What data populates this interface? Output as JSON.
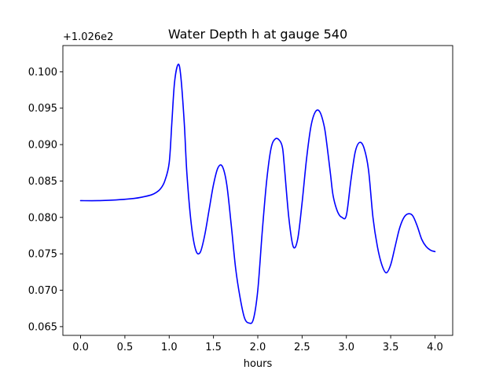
{
  "chart_data": {
    "type": "line",
    "title": "Water Depth h at gauge 540",
    "xlabel": "hours",
    "ylabel": "",
    "y_offset_label": "+1.026e2",
    "xlim": [
      -0.2,
      4.2
    ],
    "ylim": [
      0.0638,
      0.1036
    ],
    "x_ticks": [
      0.0,
      0.5,
      1.0,
      1.5,
      2.0,
      2.5,
      3.0,
      3.5,
      4.0
    ],
    "x_tick_labels": [
      "0.0",
      "0.5",
      "1.0",
      "1.5",
      "2.0",
      "2.5",
      "3.0",
      "3.5",
      "4.0"
    ],
    "y_ticks": [
      0.065,
      0.07,
      0.075,
      0.08,
      0.085,
      0.09,
      0.095,
      0.1
    ],
    "y_tick_labels": [
      "0.065",
      "0.070",
      "0.075",
      "0.080",
      "0.085",
      "0.090",
      "0.095",
      "0.100"
    ],
    "grid": false,
    "series": [
      {
        "color": "#0000ff",
        "x": [
          0.0,
          0.2,
          0.4,
          0.6,
          0.7,
          0.8,
          0.85,
          0.9,
          0.95,
          1.0,
          1.03,
          1.06,
          1.1,
          1.13,
          1.17,
          1.2,
          1.25,
          1.3,
          1.35,
          1.4,
          1.45,
          1.5,
          1.55,
          1.6,
          1.65,
          1.7,
          1.75,
          1.8,
          1.85,
          1.9,
          1.95,
          2.0,
          2.05,
          2.1,
          2.15,
          2.2,
          2.25,
          2.28,
          2.3,
          2.35,
          2.4,
          2.45,
          2.5,
          2.55,
          2.6,
          2.65,
          2.7,
          2.75,
          2.78,
          2.82,
          2.85,
          2.9,
          2.95,
          3.0,
          3.05,
          3.1,
          3.15,
          3.2,
          3.25,
          3.3,
          3.35,
          3.4,
          3.45,
          3.5,
          3.55,
          3.6,
          3.65,
          3.7,
          3.75,
          3.8,
          3.85,
          3.9,
          3.95,
          4.0
        ],
        "y": [
          0.0823,
          0.0823,
          0.0824,
          0.0826,
          0.0828,
          0.0831,
          0.0834,
          0.0839,
          0.085,
          0.0875,
          0.093,
          0.0985,
          0.101,
          0.0995,
          0.093,
          0.086,
          0.079,
          0.0755,
          0.0752,
          0.0775,
          0.081,
          0.0845,
          0.0868,
          0.087,
          0.0845,
          0.079,
          0.073,
          0.069,
          0.0662,
          0.0655,
          0.066,
          0.07,
          0.078,
          0.085,
          0.0895,
          0.0908,
          0.0905,
          0.0895,
          0.087,
          0.08,
          0.076,
          0.077,
          0.082,
          0.088,
          0.0925,
          0.0945,
          0.0945,
          0.0925,
          0.09,
          0.086,
          0.083,
          0.0808,
          0.08,
          0.0803,
          0.085,
          0.089,
          0.0903,
          0.0895,
          0.0865,
          0.08,
          0.076,
          0.0735,
          0.0724,
          0.0735,
          0.076,
          0.0785,
          0.08,
          0.0805,
          0.0802,
          0.0788,
          0.077,
          0.076,
          0.0755,
          0.0753
        ]
      }
    ]
  }
}
